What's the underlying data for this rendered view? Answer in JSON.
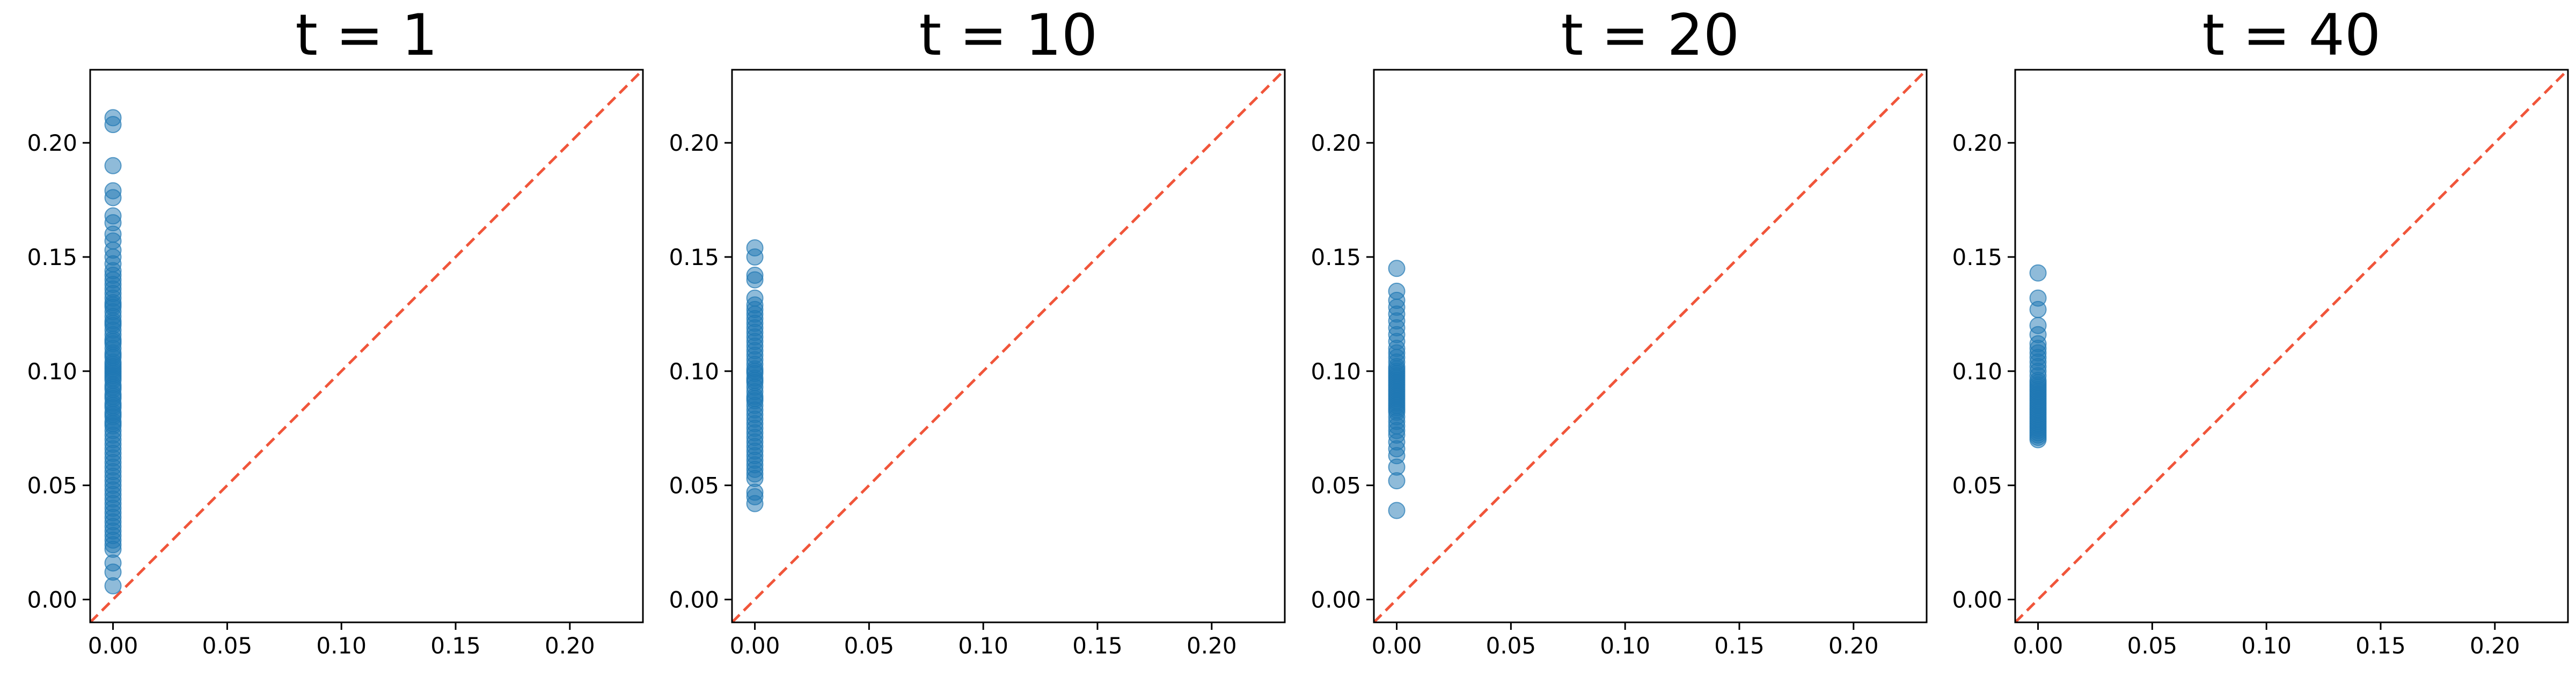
{
  "chart_data": [
    {
      "type": "scatter",
      "title": "t = 1",
      "xlabel": "",
      "ylabel": "",
      "xlim": [
        -0.01,
        0.232
      ],
      "ylim": [
        -0.01,
        0.232
      ],
      "xticks": [
        "0.00",
        "0.05",
        "0.10",
        "0.15",
        "0.20"
      ],
      "yticks": [
        "0.00",
        "0.05",
        "0.10",
        "0.15",
        "0.20"
      ],
      "reference_line": "y = x",
      "grid": false,
      "points": {
        "x": [
          0,
          0,
          0,
          0,
          0,
          0,
          0,
          0,
          0,
          0,
          0,
          0,
          0,
          0,
          0,
          0,
          0,
          0,
          0,
          0,
          0,
          0,
          0,
          0,
          0,
          0,
          0,
          0,
          0,
          0,
          0,
          0,
          0,
          0,
          0,
          0,
          0,
          0,
          0,
          0,
          0,
          0,
          0,
          0,
          0,
          0,
          0,
          0,
          0,
          0,
          0,
          0,
          0,
          0,
          0,
          0,
          0,
          0,
          0,
          0,
          0,
          0,
          0,
          0,
          0,
          0,
          0,
          0,
          0,
          0,
          0,
          0,
          0,
          0,
          0,
          0,
          0,
          0,
          0,
          0,
          0,
          0,
          0,
          0,
          0,
          0,
          0,
          0,
          0,
          0
        ],
        "y": [
          0.211,
          0.208,
          0.19,
          0.179,
          0.176,
          0.168,
          0.165,
          0.16,
          0.157,
          0.153,
          0.15,
          0.147,
          0.144,
          0.142,
          0.14,
          0.138,
          0.136,
          0.134,
          0.132,
          0.13,
          0.128,
          0.126,
          0.124,
          0.122,
          0.12,
          0.118,
          0.116,
          0.114,
          0.112,
          0.11,
          0.108,
          0.106,
          0.104,
          0.102,
          0.1,
          0.098,
          0.096,
          0.094,
          0.092,
          0.09,
          0.088,
          0.086,
          0.084,
          0.082,
          0.08,
          0.078,
          0.076,
          0.074,
          0.072,
          0.07,
          0.068,
          0.066,
          0.064,
          0.062,
          0.06,
          0.058,
          0.056,
          0.054,
          0.052,
          0.05,
          0.048,
          0.046,
          0.044,
          0.042,
          0.04,
          0.038,
          0.036,
          0.034,
          0.032,
          0.03,
          0.028,
          0.026,
          0.024,
          0.022,
          0.016,
          0.012,
          0.006,
          0.099,
          0.101,
          0.097,
          0.103,
          0.093,
          0.089,
          0.107,
          0.113,
          0.085,
          0.081,
          0.121,
          0.077,
          0.129
        ]
      }
    },
    {
      "type": "scatter",
      "title": "t = 10",
      "xlabel": "",
      "ylabel": "",
      "xlim": [
        -0.01,
        0.232
      ],
      "ylim": [
        -0.01,
        0.232
      ],
      "xticks": [
        "0.00",
        "0.05",
        "0.10",
        "0.15",
        "0.20"
      ],
      "yticks": [
        "0.00",
        "0.05",
        "0.10",
        "0.15",
        "0.20"
      ],
      "reference_line": "y = x",
      "grid": false,
      "points": {
        "x": [
          0,
          0,
          0,
          0,
          0,
          0,
          0,
          0,
          0,
          0,
          0,
          0,
          0,
          0,
          0,
          0,
          0,
          0,
          0,
          0,
          0,
          0,
          0,
          0,
          0,
          0,
          0,
          0,
          0,
          0,
          0,
          0,
          0,
          0,
          0,
          0,
          0,
          0,
          0,
          0,
          0,
          0,
          0,
          0,
          0,
          0,
          0,
          0,
          0,
          0
        ],
        "y": [
          0.154,
          0.15,
          0.142,
          0.14,
          0.132,
          0.129,
          0.127,
          0.125,
          0.123,
          0.121,
          0.119,
          0.117,
          0.115,
          0.113,
          0.111,
          0.109,
          0.107,
          0.105,
          0.103,
          0.101,
          0.099,
          0.097,
          0.095,
          0.093,
          0.091,
          0.089,
          0.087,
          0.085,
          0.083,
          0.081,
          0.079,
          0.077,
          0.075,
          0.073,
          0.071,
          0.069,
          0.067,
          0.065,
          0.063,
          0.061,
          0.059,
          0.057,
          0.055,
          0.053,
          0.047,
          0.045,
          0.042,
          0.1,
          0.096,
          0.088
        ]
      }
    },
    {
      "type": "scatter",
      "title": "t = 20",
      "xlabel": "",
      "ylabel": "",
      "xlim": [
        -0.01,
        0.232
      ],
      "ylim": [
        -0.01,
        0.232
      ],
      "xticks": [
        "0.00",
        "0.05",
        "0.10",
        "0.15",
        "0.20"
      ],
      "yticks": [
        "0.00",
        "0.05",
        "0.10",
        "0.15",
        "0.20"
      ],
      "reference_line": "y = x",
      "grid": false,
      "points": {
        "x": [
          0,
          0,
          0,
          0,
          0,
          0,
          0,
          0,
          0,
          0,
          0,
          0,
          0,
          0,
          0,
          0,
          0,
          0,
          0,
          0,
          0,
          0,
          0,
          0,
          0,
          0,
          0,
          0,
          0,
          0,
          0,
          0,
          0,
          0,
          0,
          0,
          0,
          0,
          0,
          0,
          0,
          0,
          0,
          0,
          0
        ],
        "y": [
          0.145,
          0.135,
          0.131,
          0.128,
          0.125,
          0.122,
          0.119,
          0.116,
          0.113,
          0.11,
          0.108,
          0.106,
          0.104,
          0.102,
          0.1,
          0.098,
          0.096,
          0.094,
          0.092,
          0.09,
          0.088,
          0.086,
          0.084,
          0.082,
          0.08,
          0.078,
          0.076,
          0.074,
          0.072,
          0.069,
          0.066,
          0.063,
          0.058,
          0.052,
          0.039,
          0.101,
          0.099,
          0.097,
          0.095,
          0.093,
          0.091,
          0.089,
          0.087,
          0.085,
          0.083
        ]
      }
    },
    {
      "type": "scatter",
      "title": "t = 40",
      "xlabel": "",
      "ylabel": "",
      "xlim": [
        -0.01,
        0.232
      ],
      "ylim": [
        -0.01,
        0.232
      ],
      "xticks": [
        "0.00",
        "0.05",
        "0.10",
        "0.15",
        "0.20"
      ],
      "yticks": [
        "0.00",
        "0.05",
        "0.10",
        "0.15",
        "0.20"
      ],
      "reference_line": "y = x",
      "grid": false,
      "points": {
        "x": [
          0,
          0,
          0,
          0,
          0,
          0,
          0,
          0,
          0,
          0,
          0,
          0,
          0,
          0,
          0,
          0,
          0,
          0,
          0,
          0,
          0,
          0,
          0,
          0,
          0,
          0,
          0,
          0,
          0,
          0,
          0,
          0,
          0,
          0,
          0,
          0,
          0,
          0,
          0,
          0
        ],
        "y": [
          0.143,
          0.132,
          0.127,
          0.12,
          0.116,
          0.112,
          0.11,
          0.108,
          0.106,
          0.104,
          0.102,
          0.1,
          0.098,
          0.096,
          0.094,
          0.092,
          0.09,
          0.088,
          0.086,
          0.084,
          0.082,
          0.08,
          0.078,
          0.076,
          0.074,
          0.072,
          0.07,
          0.071,
          0.073,
          0.075,
          0.077,
          0.079,
          0.081,
          0.083,
          0.085,
          0.087,
          0.089,
          0.091,
          0.093,
          0.095
        ]
      }
    }
  ],
  "colors": {
    "point_fill": "#1f77b4",
    "point_opacity": 0.5,
    "reference_line": "#f0553a",
    "axes": "#000000",
    "background": "#ffffff"
  }
}
